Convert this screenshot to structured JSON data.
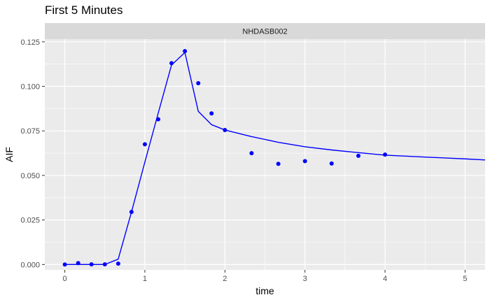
{
  "chart_data": {
    "type": "line",
    "title": "First 5 Minutes",
    "facet_label": "NHDASB002",
    "xlabel": "time",
    "ylabel": "AIF",
    "xlim": [
      -0.25,
      5.25
    ],
    "ylim": [
      -0.003,
      0.1265
    ],
    "x_ticks": [
      0,
      1,
      2,
      3,
      4,
      5
    ],
    "x_tick_labels": [
      "0",
      "1",
      "2",
      "3",
      "4",
      "5"
    ],
    "y_ticks": [
      0.0,
      0.025,
      0.05,
      0.075,
      0.1,
      0.125
    ],
    "y_tick_labels": [
      "0.000",
      "0.025",
      "0.050",
      "0.075",
      "0.100",
      "0.125"
    ],
    "grid": true,
    "series": [
      {
        "kind": "points",
        "color": "#0000ff",
        "x": [
          0.0,
          0.167,
          0.333,
          0.5,
          0.667,
          0.833,
          1.0,
          1.167,
          1.333,
          1.5,
          1.667,
          1.833,
          2.0,
          2.333,
          2.667,
          3.0,
          3.333,
          3.667,
          4.0
        ],
        "y": [
          0.0,
          0.0008,
          0.0001,
          0.0001,
          0.0005,
          0.0295,
          0.0675,
          0.0815,
          0.113,
          0.1198,
          0.1018,
          0.0848,
          0.0755,
          0.0625,
          0.0565,
          0.058,
          0.0567,
          0.061,
          0.0617
        ]
      },
      {
        "kind": "line",
        "color": "#0000ff",
        "x": [
          0.0,
          0.5,
          0.667,
          0.833,
          1.0,
          1.167,
          1.333,
          1.5,
          1.667,
          1.833,
          2.0,
          2.333,
          2.667,
          3.0,
          3.333,
          3.667,
          4.0,
          4.5,
          5.0,
          5.25
        ],
        "y": [
          0.0,
          0.0,
          0.003,
          0.0295,
          0.0575,
          0.085,
          0.112,
          0.119,
          0.086,
          0.0785,
          0.0755,
          0.0718,
          0.0686,
          0.0661,
          0.0643,
          0.0628,
          0.0614,
          0.0603,
          0.0593,
          0.0587
        ]
      }
    ]
  }
}
